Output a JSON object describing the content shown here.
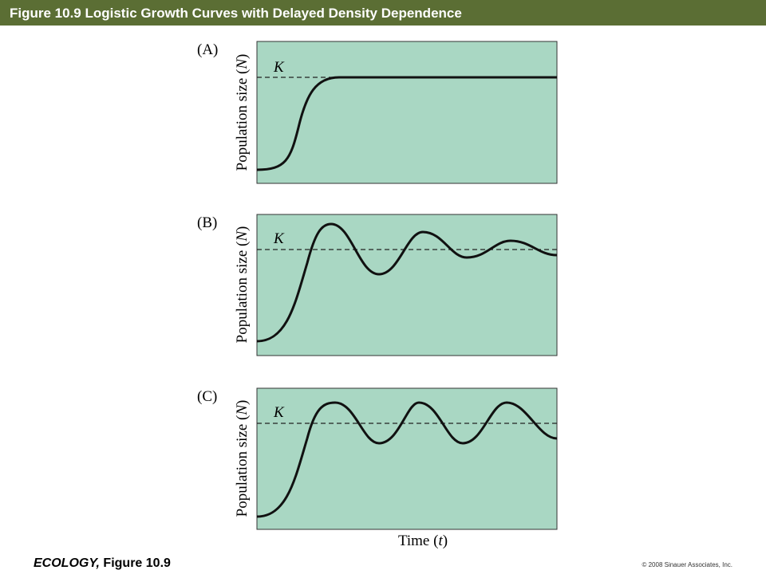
{
  "header": {
    "title": "Figure 10.9  Logistic Growth Curves with Delayed Density Dependence"
  },
  "panels": [
    {
      "label": "(A)",
      "k_label": "K",
      "y_label": [
        "Population size (",
        "N",
        ")"
      ]
    },
    {
      "label": "(B)",
      "k_label": "K",
      "y_label": [
        "Population size (",
        "N",
        ")"
      ]
    },
    {
      "label": "(C)",
      "k_label": "K",
      "y_label": [
        "Population size (",
        "N",
        ")"
      ]
    }
  ],
  "x_label": [
    "Time (",
    "t",
    ")"
  ],
  "footer": {
    "book": "ECOLOGY,",
    "figure": " Figure 10.9",
    "copyright": "© 2008 Sinauer Associates, Inc."
  }
}
